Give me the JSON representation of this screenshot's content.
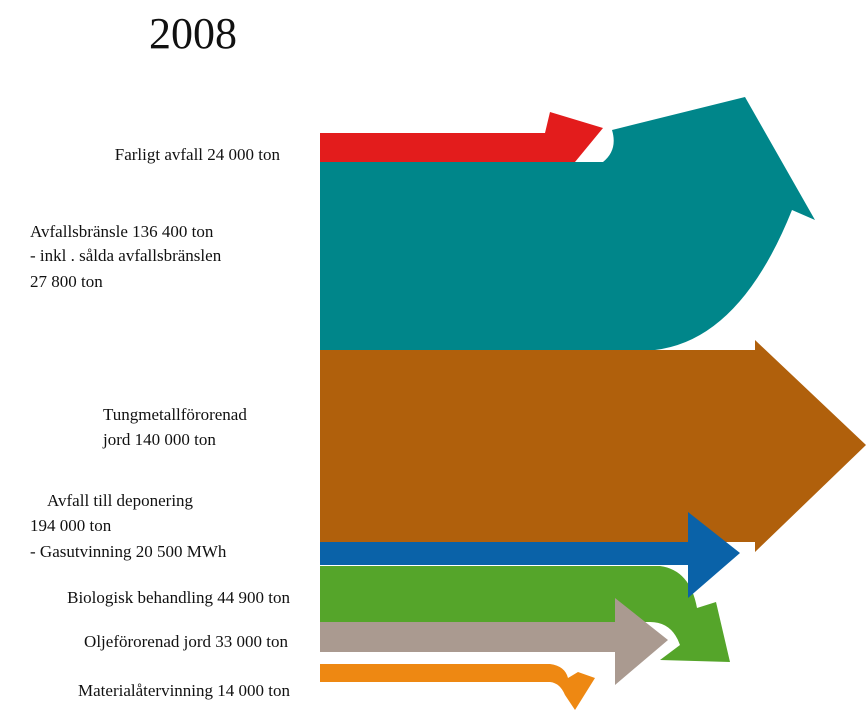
{
  "title": "2008",
  "flows": [
    {
      "lines": [
        "Farligt avfall 24 000 ton"
      ]
    },
    {
      "lines": [
        "Avfallsbränsle 136 400 ton",
        "- inkl . sålda avfallsbränslen",
        "27 800 ton"
      ]
    },
    {
      "lines": [
        "Tungmetallförorenad",
        "jord 140 000 ton"
      ]
    },
    {
      "lines": [
        "Avfall till deponering",
        "194 000 ton",
        "- Gasutvinning 20 500 MWh"
      ]
    },
    {
      "lines": [
        "Biologisk behandling 44 900 ton"
      ]
    },
    {
      "lines": [
        "Oljeförorenad jord 33 000 ton"
      ]
    },
    {
      "lines": [
        "Materialåtervinning 14 000 ton"
      ]
    }
  ]
}
